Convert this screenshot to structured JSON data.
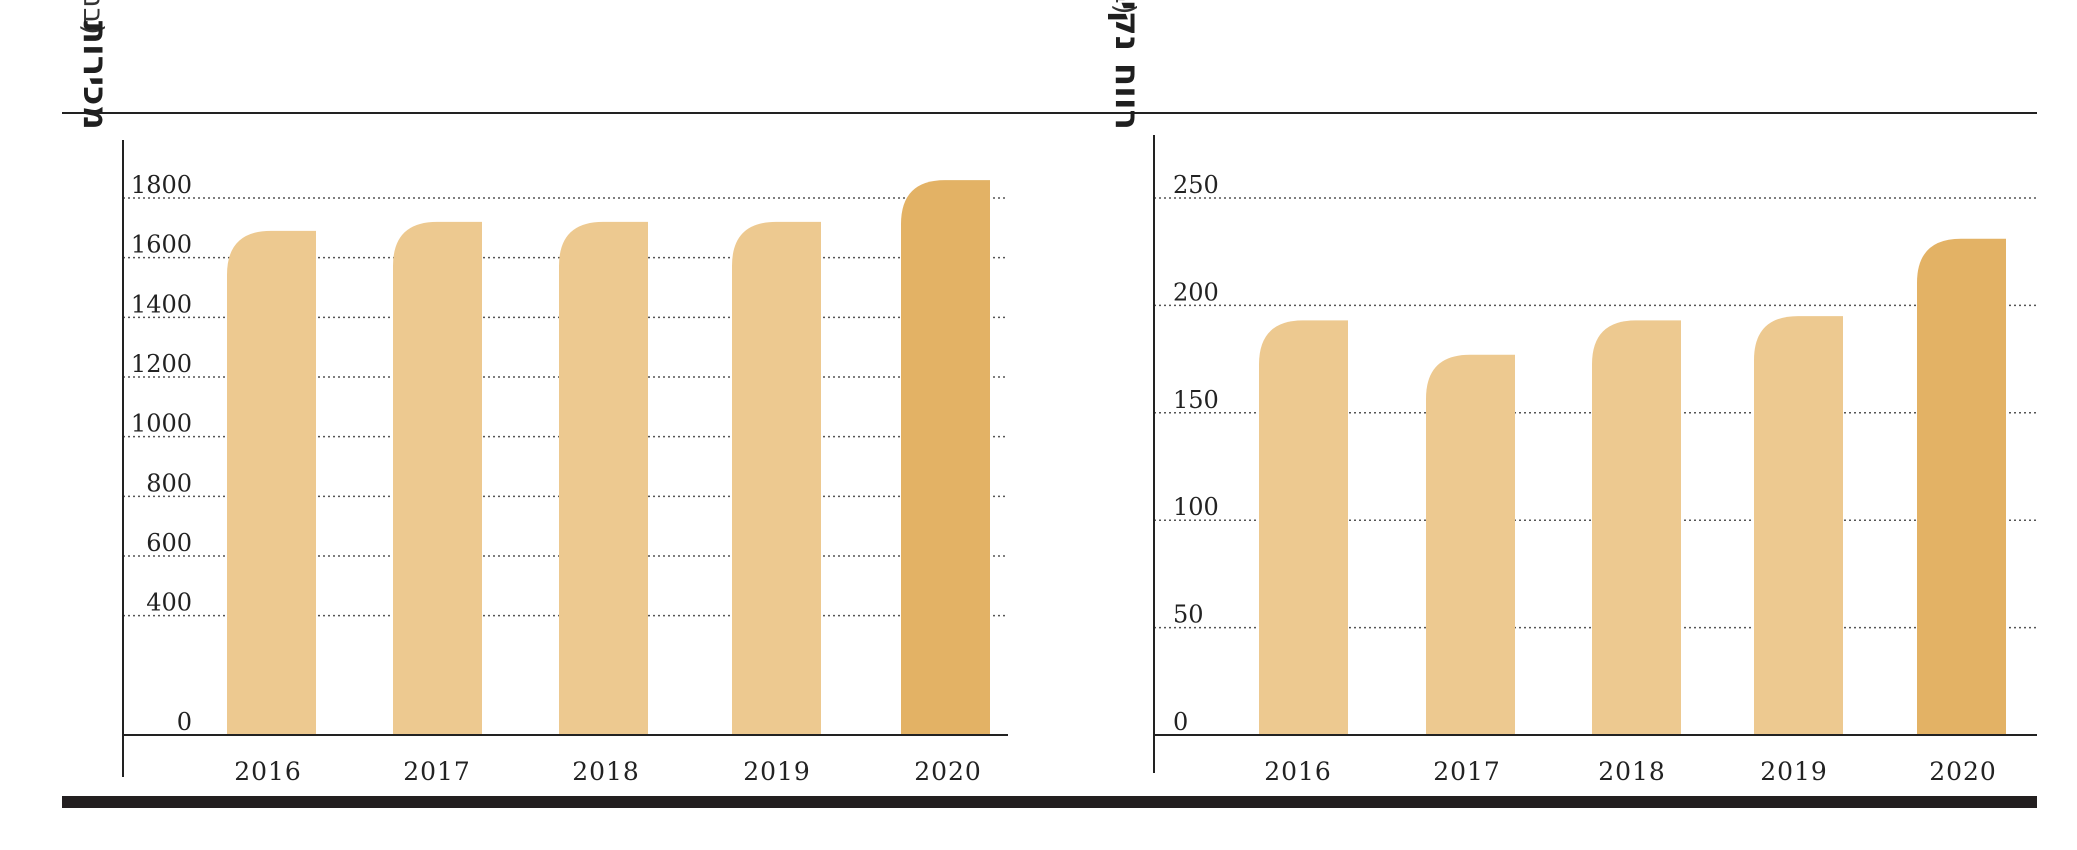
{
  "colors": {
    "bar_regular": "#EDC990",
    "bar_highlight": "#E3B265",
    "axis": "#222222",
    "grid": "#555555",
    "bottom_bar": "#231F20"
  },
  "chart_data": [
    {
      "type": "bar",
      "title": "מכירות",
      "subtitle": "(במיליוני שקלים)",
      "categories": [
        "2016",
        "2017",
        "2018",
        "2019",
        "2020"
      ],
      "values": [
        1690,
        1720,
        1720,
        1720,
        1860
      ],
      "highlight": "2020",
      "ylim": [
        0,
        1800
      ],
      "yticks": [
        0,
        400,
        600,
        800,
        1000,
        1200,
        1400,
        1600,
        1800
      ],
      "grid": true,
      "xlabel": "",
      "ylabel": ""
    },
    {
      "type": "bar",
      "title": "רווח נקי",
      "subtitle": "(במיליוני שקלים)",
      "categories": [
        "2016",
        "2017",
        "2018",
        "2019",
        "2020"
      ],
      "values": [
        193,
        177,
        193,
        195,
        231
      ],
      "highlight": "2020",
      "ylim": [
        0,
        250
      ],
      "yticks": [
        0,
        50,
        100,
        150,
        200,
        250
      ],
      "grid": true,
      "xlabel": "",
      "ylabel": ""
    }
  ]
}
